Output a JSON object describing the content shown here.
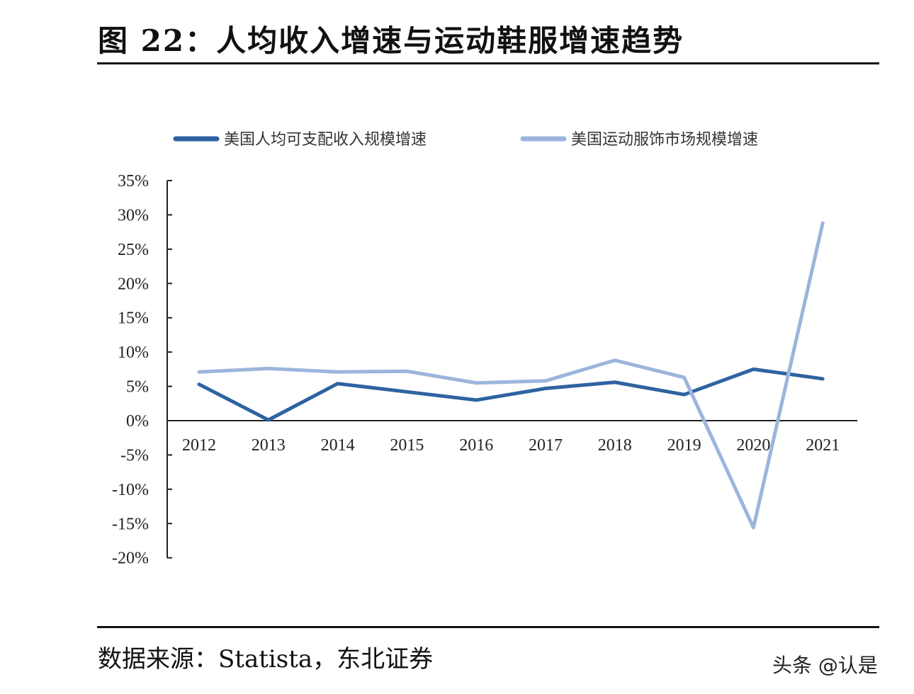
{
  "title": "图 22：人均收入增速与运动鞋服增速趋势",
  "source": "数据来源：Statista，东北证券",
  "watermark": "头条 @认是",
  "chart_data": {
    "type": "line",
    "title": "",
    "xlabel": "",
    "ylabel": "",
    "categories": [
      "2012",
      "2013",
      "2014",
      "2015",
      "2016",
      "2017",
      "2018",
      "2019",
      "2020",
      "2021"
    ],
    "ylim": [
      -20,
      35
    ],
    "yticks": [
      35,
      30,
      25,
      20,
      15,
      10,
      5,
      0,
      -5,
      -10,
      -15,
      -20
    ],
    "ytick_labels": [
      "35%",
      "30%",
      "25%",
      "20%",
      "15%",
      "10%",
      "5%",
      "0%",
      "-5%",
      "-10%",
      "-15%",
      "-20%"
    ],
    "grid": false,
    "legend_position": "top",
    "series": [
      {
        "name": "美国人均可支配收入规模增速",
        "color": "#2e63a1",
        "values": [
          5.3,
          0.1,
          5.4,
          4.2,
          3.0,
          4.7,
          5.6,
          3.8,
          7.5,
          6.1
        ]
      },
      {
        "name": "美国运动服饰市场规模增速",
        "color": "#9db5dc",
        "values": [
          7.1,
          7.6,
          7.1,
          7.2,
          5.5,
          5.8,
          8.8,
          6.3,
          -15.6,
          28.8
        ]
      }
    ]
  }
}
